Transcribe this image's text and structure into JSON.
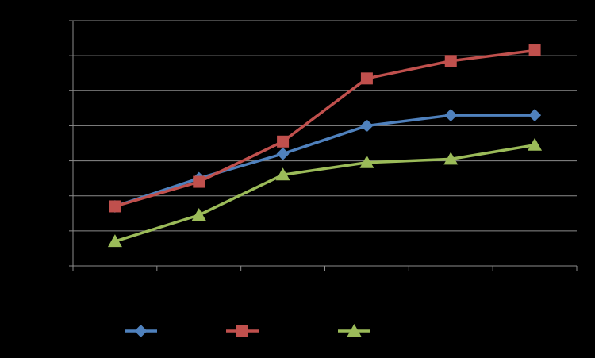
{
  "chart_data": {
    "type": "line",
    "title": "",
    "xlabel": "",
    "ylabel": "",
    "categories": [
      "",
      "",
      "",
      "",
      "",
      ""
    ],
    "ylim": [
      0,
      70
    ],
    "grid": true,
    "legend_position": "bottom",
    "series": [
      {
        "name": "",
        "color": "#4f81bd",
        "marker": "diamond",
        "values": [
          17,
          25,
          32,
          40,
          43,
          43
        ],
        "labels": [
          "",
          "",
          "",
          "",
          "",
          ""
        ]
      },
      {
        "name": "",
        "color": "#c0504d",
        "marker": "square",
        "values": [
          17,
          24,
          35.5,
          53.5,
          58.5,
          61.5
        ],
        "labels": [
          "",
          "",
          "",
          "",
          "",
          ""
        ]
      },
      {
        "name": "",
        "color": "#9bbb59",
        "marker": "triangle",
        "values": [
          7,
          14.5,
          26,
          29.5,
          30.5,
          34.5
        ],
        "labels": [
          "",
          "",
          "",
          "",
          "",
          ""
        ]
      }
    ]
  }
}
